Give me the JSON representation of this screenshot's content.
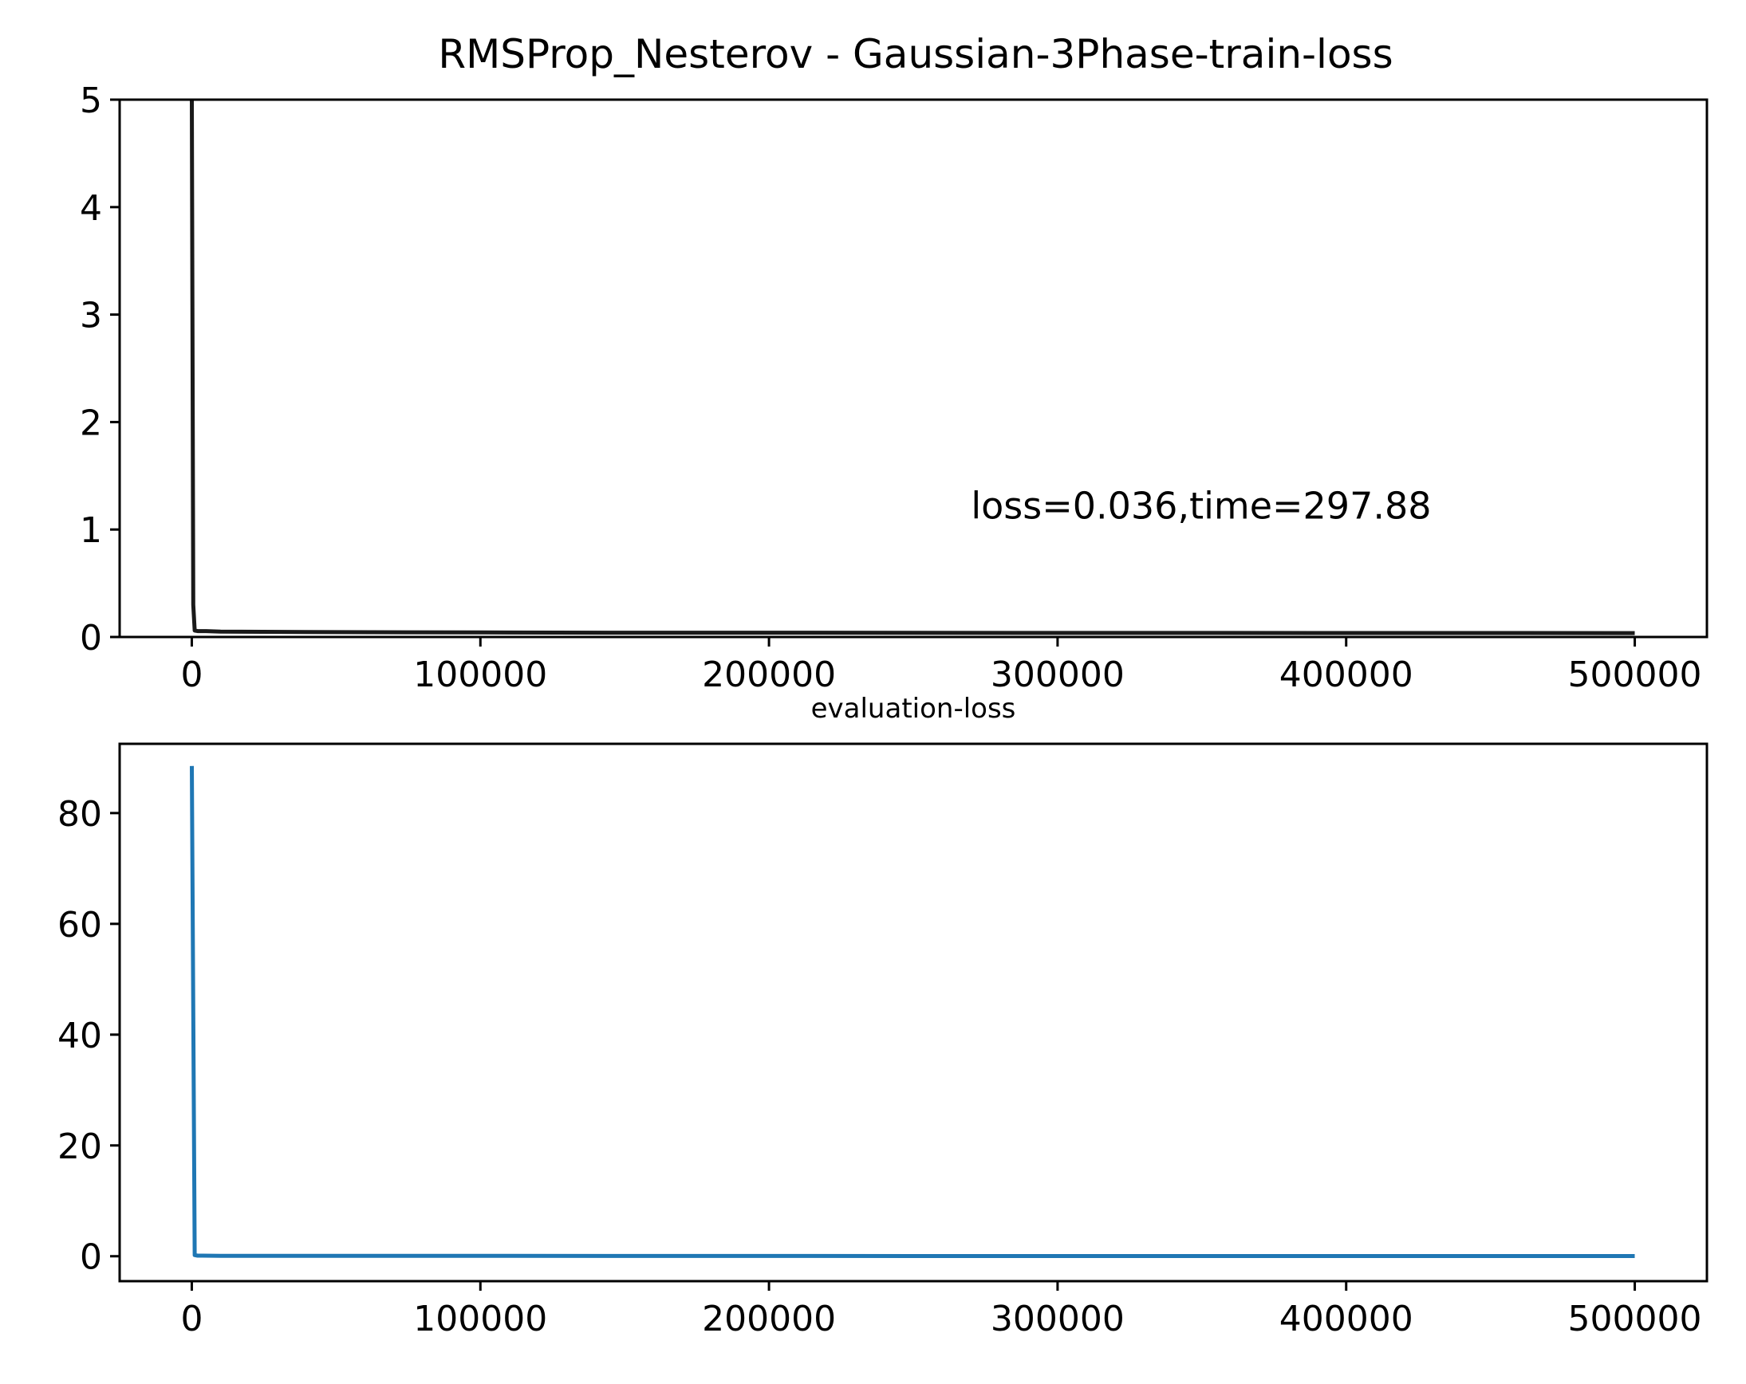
{
  "chart_data": [
    {
      "type": "line",
      "title": "RMSProp_Nesterov - Gaussian-3Phase-train-loss",
      "xlabel": "",
      "ylabel": "",
      "xlim": [
        -25000,
        525000
      ],
      "ylim": [
        0,
        5
      ],
      "x_ticks": [
        0,
        100000,
        200000,
        300000,
        400000,
        500000
      ],
      "x_tick_labels": [
        "0",
        "100000",
        "200000",
        "300000",
        "400000",
        "500000"
      ],
      "y_ticks": [
        0,
        1,
        2,
        3,
        4,
        5
      ],
      "y_tick_labels": [
        "0",
        "1",
        "2",
        "3",
        "4",
        "5"
      ],
      "grid": false,
      "annotation": {
        "text": "loss=0.036,time=297.88",
        "x": 270000,
        "y": 1.1
      },
      "series": [
        {
          "color": "#1a1a1a",
          "x": [
            0,
            500,
            1000,
            2000,
            5000,
            10000,
            50000,
            100000,
            150000,
            200000,
            250000,
            300000,
            350000,
            400000,
            450000,
            500000
          ],
          "y": [
            5.0,
            0.3,
            0.06,
            0.055,
            0.055,
            0.05,
            0.045,
            0.042,
            0.04,
            0.04,
            0.039,
            0.038,
            0.038,
            0.037,
            0.037,
            0.036
          ]
        }
      ]
    },
    {
      "type": "line",
      "title": "evaluation-loss",
      "xlabel": "",
      "ylabel": "",
      "xlim": [
        -25000,
        525000
      ],
      "ylim": [
        -4.5,
        92.5
      ],
      "x_ticks": [
        0,
        100000,
        200000,
        300000,
        400000,
        500000
      ],
      "x_tick_labels": [
        "0",
        "100000",
        "200000",
        "300000",
        "400000",
        "500000"
      ],
      "y_ticks": [
        0,
        20,
        40,
        60,
        80
      ],
      "y_tick_labels": [
        "0",
        "20",
        "40",
        "60",
        "80"
      ],
      "grid": false,
      "series": [
        {
          "color": "#1f77b4",
          "x": [
            0,
            1000,
            2000,
            10000,
            100000,
            200000,
            300000,
            400000,
            500000
          ],
          "y": [
            88.5,
            0.2,
            0.1,
            0.08,
            0.06,
            0.05,
            0.04,
            0.04,
            0.04
          ]
        }
      ]
    }
  ]
}
